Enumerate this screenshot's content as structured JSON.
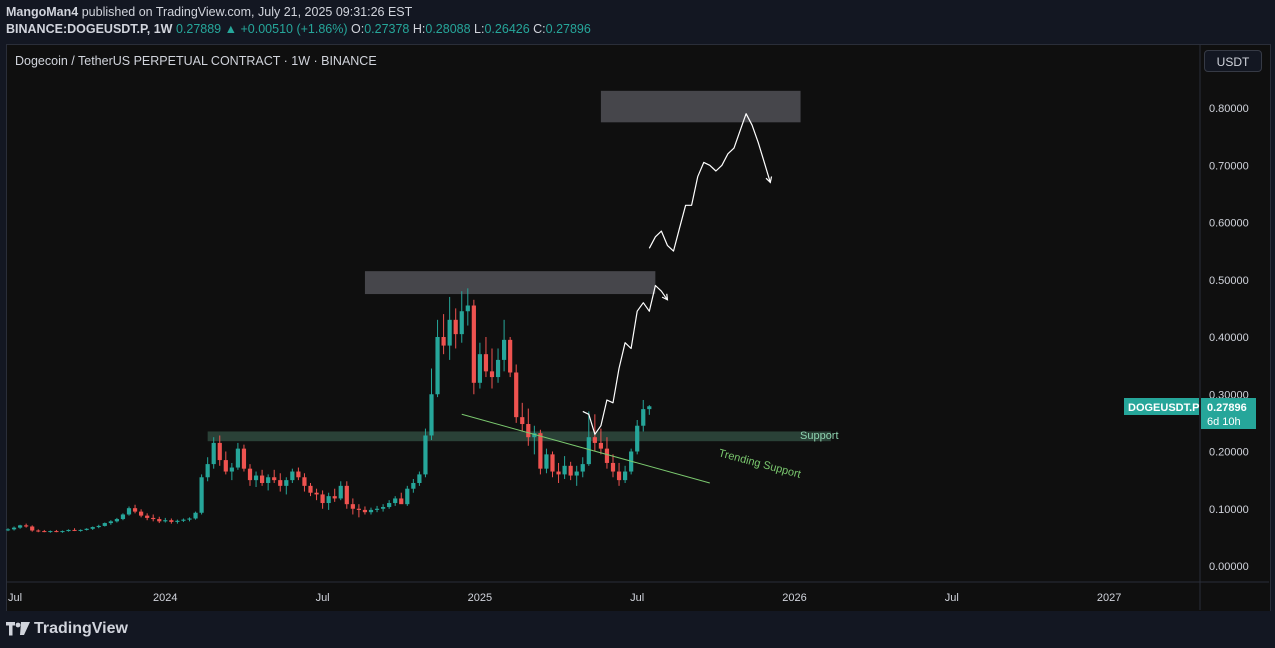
{
  "header": {
    "author": "MangoMan4",
    "published_text": "published on TradingView.com, July 21, 2025 09:31:26 EST",
    "symbol_line": "BINANCE:DOGEUSDT.P, 1W",
    "last": "0.27889",
    "change": "+0.00510 (+1.86%)",
    "o_label": "O:",
    "o": "0.27378",
    "h_label": "H:",
    "h": "0.28088",
    "l_label": "L:",
    "l": "0.26426",
    "c_label": "C:",
    "c": "0.27896"
  },
  "chart_title": "Dogecoin / TetherUS PERPETUAL CONTRACT · 1W · BINANCE",
  "currency_button": "USDT",
  "price_label": {
    "symbol": "DOGEUSDT.P",
    "price": "0.27896",
    "countdown": "6d 10h"
  },
  "annotations": {
    "support": "Support",
    "trending_support": "Trending Support"
  },
  "footer": {
    "brand": "TradingView"
  },
  "colors": {
    "up": "#26a69a",
    "down": "#ef5350",
    "background": "#0f0f0f",
    "support_zone": "#2f4a3e",
    "resistance_zone": "#4a4a4f",
    "trend_line": "#7bc96f"
  },
  "chart_data": {
    "type": "candlestick",
    "ylim": [
      -0.02,
      0.86
    ],
    "y_ticks": [
      "0.80000",
      "0.70000",
      "0.60000",
      "0.50000",
      "0.40000",
      "0.30000",
      "0.20000",
      "0.10000",
      "0.00000"
    ],
    "y_tick_values": [
      0.8,
      0.7,
      0.6,
      0.5,
      0.4,
      0.3,
      0.2,
      0.1,
      0.0
    ],
    "x_ticks": [
      {
        "label": "Jul",
        "week": 0
      },
      {
        "label": "2024",
        "week": 26
      },
      {
        "label": "Jul",
        "week": 52
      },
      {
        "label": "2025",
        "week": 78
      },
      {
        "label": "Jul",
        "week": 104
      },
      {
        "label": "2026",
        "week": 130
      },
      {
        "label": "Jul",
        "week": 156
      },
      {
        "label": "2027",
        "week": 182
      }
    ],
    "candles": [
      [
        0.063,
        0.066,
        0.061,
        0.064
      ],
      [
        0.064,
        0.069,
        0.062,
        0.067
      ],
      [
        0.067,
        0.072,
        0.065,
        0.071
      ],
      [
        0.071,
        0.074,
        0.067,
        0.069
      ],
      [
        0.069,
        0.071,
        0.06,
        0.062
      ],
      [
        0.062,
        0.064,
        0.059,
        0.061
      ],
      [
        0.061,
        0.063,
        0.059,
        0.06
      ],
      [
        0.06,
        0.062,
        0.058,
        0.061
      ],
      [
        0.061,
        0.063,
        0.059,
        0.06
      ],
      [
        0.06,
        0.062,
        0.058,
        0.061
      ],
      [
        0.061,
        0.064,
        0.06,
        0.063
      ],
      [
        0.063,
        0.066,
        0.061,
        0.062
      ],
      [
        0.062,
        0.064,
        0.06,
        0.063
      ],
      [
        0.063,
        0.066,
        0.062,
        0.065
      ],
      [
        0.065,
        0.069,
        0.063,
        0.068
      ],
      [
        0.068,
        0.072,
        0.066,
        0.07
      ],
      [
        0.07,
        0.076,
        0.069,
        0.075
      ],
      [
        0.075,
        0.08,
        0.072,
        0.078
      ],
      [
        0.078,
        0.084,
        0.076,
        0.082
      ],
      [
        0.082,
        0.092,
        0.08,
        0.09
      ],
      [
        0.09,
        0.104,
        0.088,
        0.101
      ],
      [
        0.101,
        0.107,
        0.092,
        0.095
      ],
      [
        0.095,
        0.099,
        0.085,
        0.088
      ],
      [
        0.088,
        0.092,
        0.08,
        0.084
      ],
      [
        0.084,
        0.09,
        0.078,
        0.082
      ],
      [
        0.082,
        0.086,
        0.075,
        0.078
      ],
      [
        0.078,
        0.084,
        0.076,
        0.08
      ],
      [
        0.08,
        0.083,
        0.074,
        0.077
      ],
      [
        0.077,
        0.081,
        0.074,
        0.079
      ],
      [
        0.079,
        0.083,
        0.077,
        0.081
      ],
      [
        0.081,
        0.085,
        0.078,
        0.083
      ],
      [
        0.083,
        0.095,
        0.081,
        0.093
      ],
      [
        0.093,
        0.16,
        0.09,
        0.155
      ],
      [
        0.155,
        0.19,
        0.148,
        0.178
      ],
      [
        0.178,
        0.225,
        0.17,
        0.215
      ],
      [
        0.215,
        0.228,
        0.175,
        0.185
      ],
      [
        0.185,
        0.2,
        0.16,
        0.165
      ],
      [
        0.165,
        0.18,
        0.15,
        0.172
      ],
      [
        0.172,
        0.215,
        0.168,
        0.205
      ],
      [
        0.205,
        0.212,
        0.165,
        0.17
      ],
      [
        0.17,
        0.178,
        0.14,
        0.15
      ],
      [
        0.15,
        0.165,
        0.138,
        0.158
      ],
      [
        0.158,
        0.168,
        0.14,
        0.145
      ],
      [
        0.145,
        0.16,
        0.132,
        0.155
      ],
      [
        0.155,
        0.168,
        0.145,
        0.15
      ],
      [
        0.15,
        0.162,
        0.13,
        0.14
      ],
      [
        0.14,
        0.155,
        0.125,
        0.15
      ],
      [
        0.15,
        0.17,
        0.145,
        0.165
      ],
      [
        0.165,
        0.172,
        0.15,
        0.155
      ],
      [
        0.155,
        0.162,
        0.13,
        0.14
      ],
      [
        0.14,
        0.145,
        0.122,
        0.128
      ],
      [
        0.128,
        0.135,
        0.115,
        0.125
      ],
      [
        0.125,
        0.132,
        0.1,
        0.11
      ],
      [
        0.11,
        0.128,
        0.098,
        0.122
      ],
      [
        0.122,
        0.135,
        0.112,
        0.118
      ],
      [
        0.118,
        0.148,
        0.115,
        0.14
      ],
      [
        0.14,
        0.148,
        0.1,
        0.108
      ],
      [
        0.108,
        0.118,
        0.09,
        0.1
      ],
      [
        0.1,
        0.108,
        0.085,
        0.098
      ],
      [
        0.098,
        0.104,
        0.09,
        0.094
      ],
      [
        0.094,
        0.102,
        0.09,
        0.098
      ],
      [
        0.098,
        0.105,
        0.094,
        0.1
      ],
      [
        0.1,
        0.108,
        0.095,
        0.103
      ],
      [
        0.103,
        0.115,
        0.1,
        0.11
      ],
      [
        0.11,
        0.122,
        0.105,
        0.118
      ],
      [
        0.118,
        0.128,
        0.112,
        0.108
      ],
      [
        0.108,
        0.14,
        0.105,
        0.135
      ],
      [
        0.135,
        0.152,
        0.128,
        0.145
      ],
      [
        0.145,
        0.165,
        0.14,
        0.16
      ],
      [
        0.16,
        0.24,
        0.155,
        0.228
      ],
      [
        0.228,
        0.345,
        0.22,
        0.3
      ],
      [
        0.3,
        0.43,
        0.295,
        0.4
      ],
      [
        0.4,
        0.44,
        0.37,
        0.385
      ],
      [
        0.385,
        0.47,
        0.36,
        0.43
      ],
      [
        0.43,
        0.45,
        0.38,
        0.405
      ],
      [
        0.405,
        0.48,
        0.39,
        0.445
      ],
      [
        0.445,
        0.485,
        0.42,
        0.455
      ],
      [
        0.455,
        0.465,
        0.3,
        0.32
      ],
      [
        0.32,
        0.39,
        0.31,
        0.37
      ],
      [
        0.37,
        0.4,
        0.33,
        0.34
      ],
      [
        0.34,
        0.38,
        0.31,
        0.33
      ],
      [
        0.33,
        0.38,
        0.32,
        0.36
      ],
      [
        0.36,
        0.43,
        0.34,
        0.395
      ],
      [
        0.395,
        0.4,
        0.33,
        0.338
      ],
      [
        0.338,
        0.352,
        0.25,
        0.26
      ],
      [
        0.26,
        0.285,
        0.235,
        0.248
      ],
      [
        0.248,
        0.275,
        0.21,
        0.225
      ],
      [
        0.225,
        0.245,
        0.195,
        0.232
      ],
      [
        0.232,
        0.238,
        0.16,
        0.17
      ],
      [
        0.17,
        0.205,
        0.162,
        0.195
      ],
      [
        0.195,
        0.2,
        0.155,
        0.165
      ],
      [
        0.165,
        0.18,
        0.145,
        0.16
      ],
      [
        0.16,
        0.192,
        0.152,
        0.175
      ],
      [
        0.175,
        0.182,
        0.15,
        0.158
      ],
      [
        0.158,
        0.175,
        0.14,
        0.165
      ],
      [
        0.165,
        0.19,
        0.155,
        0.178
      ],
      [
        0.178,
        0.27,
        0.175,
        0.225
      ],
      [
        0.225,
        0.265,
        0.2,
        0.215
      ],
      [
        0.215,
        0.24,
        0.195,
        0.205
      ],
      [
        0.205,
        0.225,
        0.17,
        0.18
      ],
      [
        0.18,
        0.195,
        0.155,
        0.165
      ],
      [
        0.165,
        0.18,
        0.14,
        0.15
      ],
      [
        0.15,
        0.175,
        0.145,
        0.165
      ],
      [
        0.165,
        0.205,
        0.16,
        0.2
      ],
      [
        0.2,
        0.255,
        0.195,
        0.245
      ],
      [
        0.245,
        0.29,
        0.235,
        0.274
      ],
      [
        0.274,
        0.281,
        0.264,
        0.279
      ]
    ],
    "zones": [
      {
        "name": "support",
        "from_week": 33,
        "to_week": 136,
        "y_low": 0.218,
        "y_high": 0.235
      },
      {
        "name": "resistance-1",
        "from_week": 59,
        "to_week": 107,
        "y_low": 0.475,
        "y_high": 0.515
      },
      {
        "name": "resistance-2",
        "from_week": 98,
        "to_week": 131,
        "y_low": 0.775,
        "y_high": 0.83
      }
    ],
    "trend_line": {
      "from_week": 75,
      "from_y": 0.265,
      "to_week": 116,
      "to_y": 0.145
    },
    "projections": [
      [
        [
          95,
          0.27
        ],
        [
          96,
          0.265
        ],
        [
          97,
          0.23
        ],
        [
          98,
          0.245
        ],
        [
          99,
          0.29
        ],
        [
          100,
          0.285
        ],
        [
          101,
          0.345
        ],
        [
          102,
          0.39
        ],
        [
          103,
          0.38
        ],
        [
          104,
          0.445
        ],
        [
          105,
          0.46
        ],
        [
          106,
          0.445
        ],
        [
          107,
          0.49
        ],
        [
          108,
          0.48
        ],
        [
          109,
          0.465
        ]
      ],
      [
        [
          106,
          0.555
        ],
        [
          107,
          0.575
        ],
        [
          108,
          0.585
        ],
        [
          109,
          0.56
        ],
        [
          110,
          0.55
        ],
        [
          111,
          0.59
        ],
        [
          112,
          0.63
        ],
        [
          113,
          0.63
        ],
        [
          114,
          0.68
        ],
        [
          115,
          0.705
        ],
        [
          116,
          0.7
        ],
        [
          117,
          0.69
        ],
        [
          118,
          0.7
        ],
        [
          119,
          0.72
        ],
        [
          120,
          0.73
        ],
        [
          121,
          0.76
        ],
        [
          122,
          0.79
        ],
        [
          123,
          0.77
        ],
        [
          124,
          0.74
        ],
        [
          125,
          0.705
        ],
        [
          126,
          0.67
        ]
      ]
    ]
  }
}
